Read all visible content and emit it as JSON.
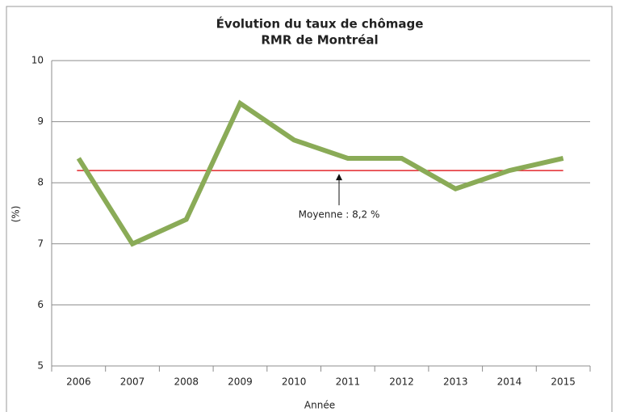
{
  "chart_data": {
    "type": "line",
    "title": "Évolution du taux de chômage",
    "subtitle": "RMR de Montréal",
    "x_label": "Année",
    "y_label": "(%)",
    "categories": [
      "2006",
      "2007",
      "2008",
      "2009",
      "2010",
      "2011",
      "2012",
      "2013",
      "2014",
      "2015"
    ],
    "values": [
      8.4,
      7.0,
      7.4,
      9.3,
      8.7,
      8.4,
      8.4,
      7.9,
      8.2,
      8.4
    ],
    "color": "#8aab57",
    "ylim": [
      5,
      10
    ],
    "yticks": [
      5,
      6,
      7,
      8,
      9,
      10
    ],
    "grid": true,
    "reference_line": {
      "value": 8.2,
      "color": "#e3262b",
      "label": "Moyenne : 8,2 %"
    }
  }
}
